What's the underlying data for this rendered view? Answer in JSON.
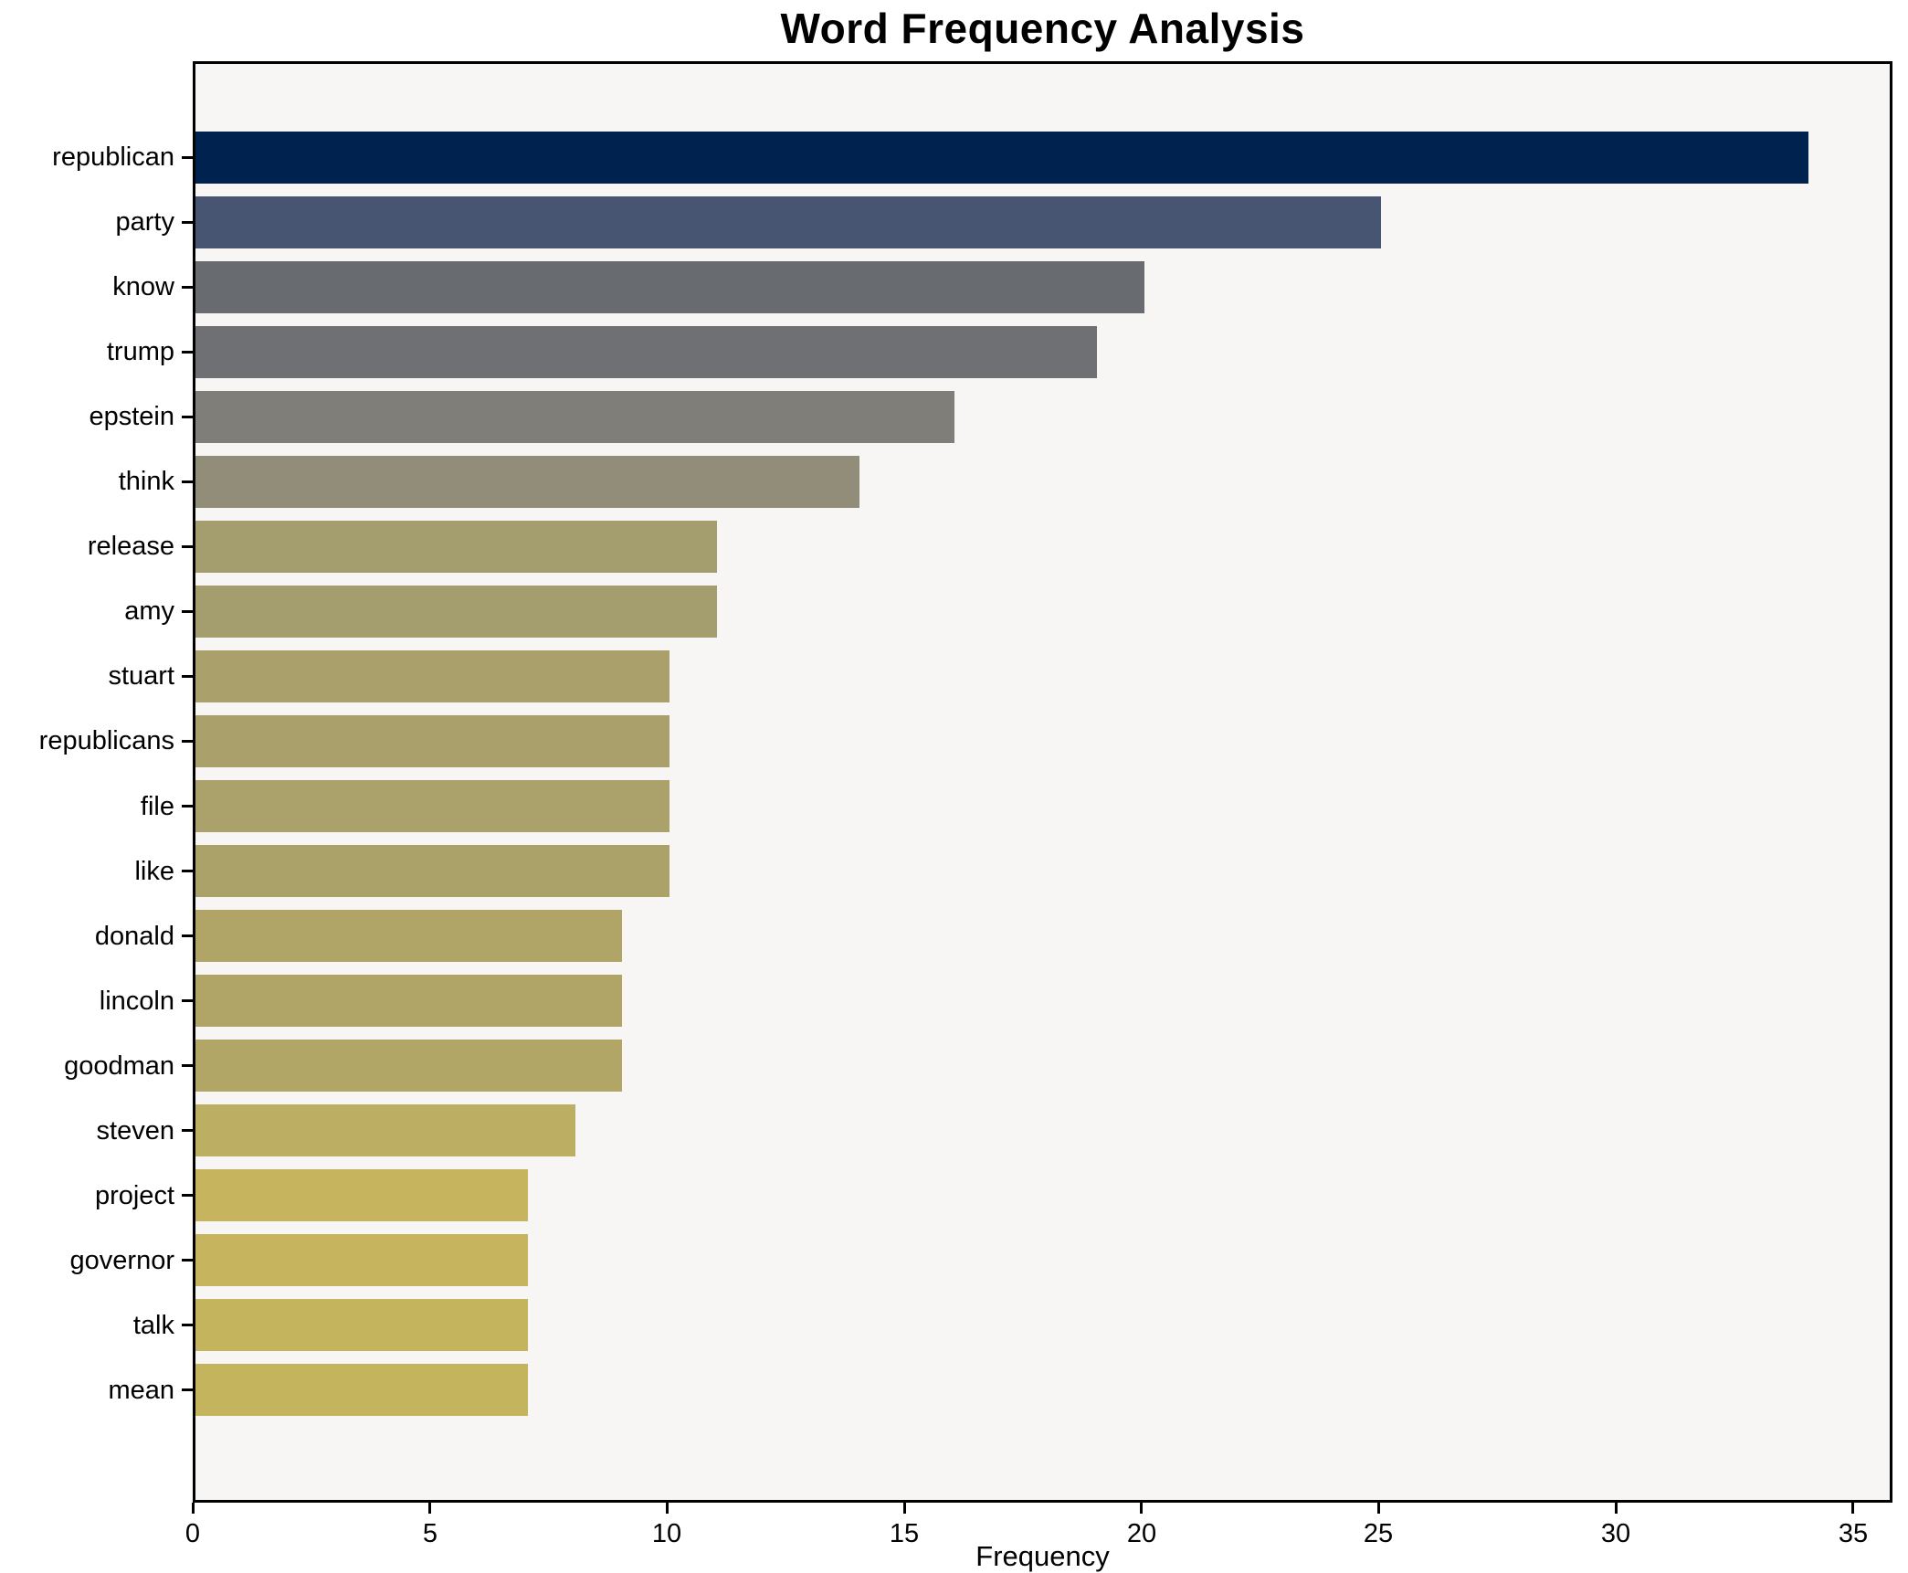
{
  "title": "Word Frequency Analysis",
  "chart_data": {
    "type": "bar",
    "orientation": "horizontal",
    "title": "Word Frequency Analysis",
    "xlabel": "Frequency",
    "ylabel": "",
    "categories": [
      "republican",
      "party",
      "know",
      "trump",
      "epstein",
      "think",
      "release",
      "amy",
      "stuart",
      "republicans",
      "file",
      "like",
      "donald",
      "lincoln",
      "goodman",
      "steven",
      "project",
      "governor",
      "talk",
      "mean"
    ],
    "values": [
      34,
      25,
      20,
      19,
      16,
      14,
      11,
      11,
      10,
      10,
      10,
      10,
      9,
      9,
      9,
      8,
      7,
      7,
      7,
      7
    ],
    "bar_colors": [
      "#00224f",
      "#475472",
      "#686b70",
      "#6e7074",
      "#7f7e78",
      "#918d78",
      "#a49d6e",
      "#a49d6e",
      "#a9a06c",
      "#a9a06c",
      "#aba26b",
      "#aba26a",
      "#b0a566",
      "#b0a566",
      "#b1a666",
      "#bcae62",
      "#c6b55e",
      "#c6b55e",
      "#c5b45e",
      "#c5b45e"
    ],
    "xlim": [
      0,
      35.83
    ],
    "xticks": [
      0,
      5,
      10,
      15,
      20,
      25,
      30,
      35
    ],
    "grid": false,
    "legend": null,
    "plot_bg": "#f7f6f4",
    "figure_bg": "#ffffff"
  }
}
